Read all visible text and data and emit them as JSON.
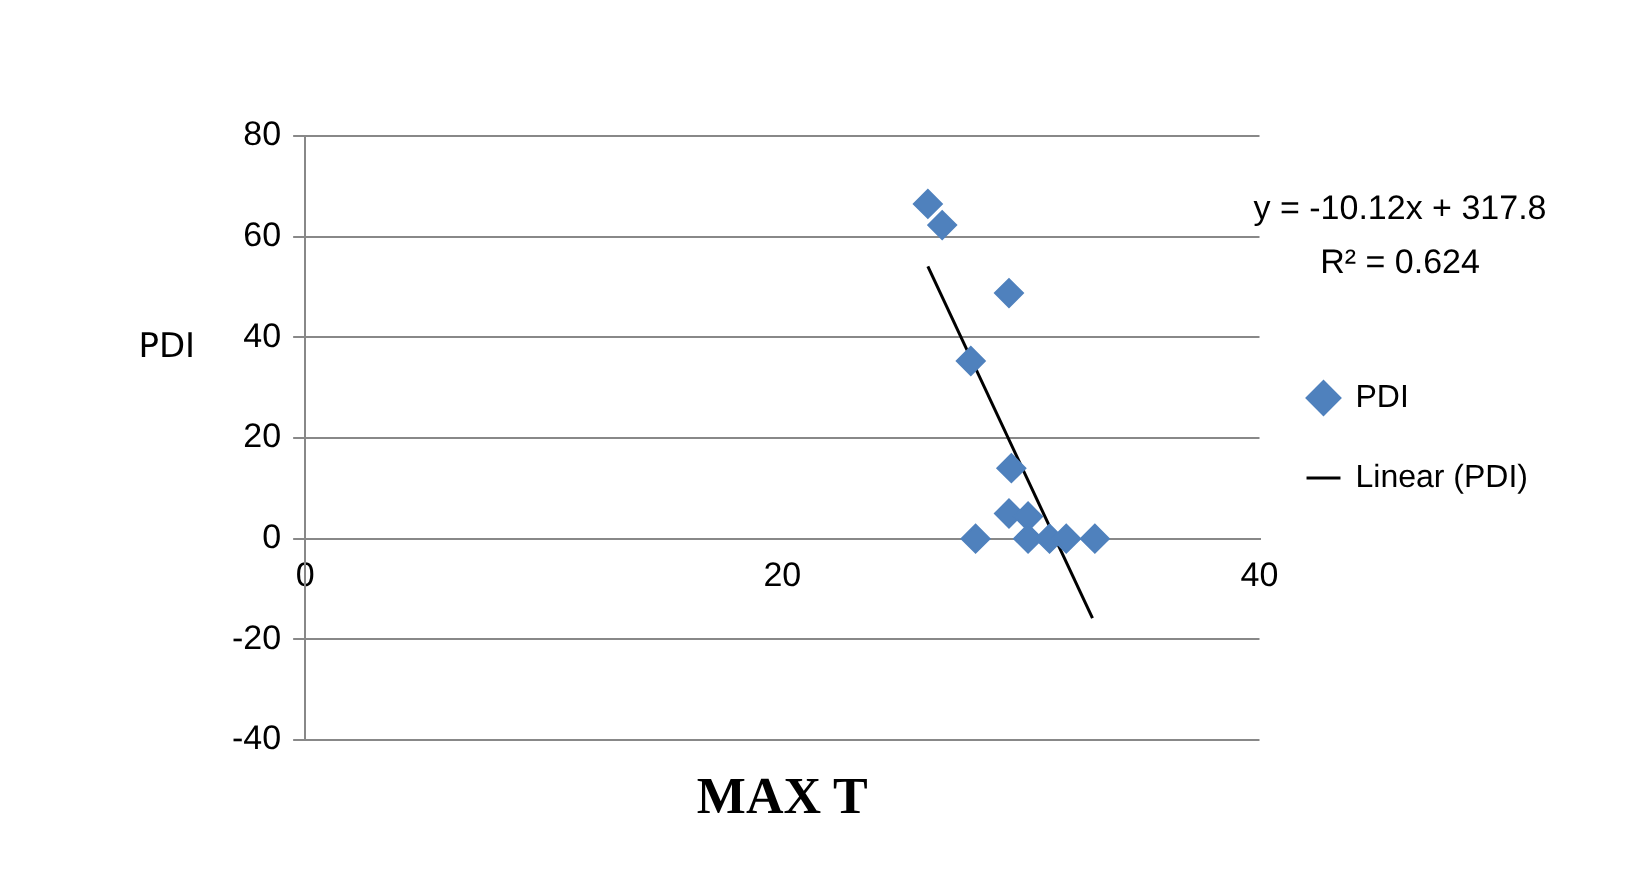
{
  "chart_data": {
    "type": "scatter",
    "xlabel": "MAX T",
    "ylabel": "PDI",
    "xlim": [
      0,
      40
    ],
    "xticks": [
      0,
      20,
      40
    ],
    "ylim": [
      -40,
      80
    ],
    "yticks": [
      -40,
      -20,
      0,
      20,
      40,
      60,
      80
    ],
    "grid": "y",
    "legend": "right",
    "marker": "diamond",
    "annotations": [
      "y = -10.12x + 317.8",
      "R² = 0.624"
    ],
    "series": [
      {
        "name": "PDI",
        "type": "scatter",
        "color": "#4f81bd",
        "x": [
          26.1,
          26.7,
          29.5,
          27.9,
          29.6,
          28.1,
          29.5,
          30.3,
          30.3,
          31.2,
          31.9,
          33.1
        ],
        "values": [
          66.5,
          62.3,
          48.8,
          35.3,
          14,
          0,
          5,
          4.4,
          0,
          0,
          0,
          0
        ]
      },
      {
        "name": "Linear (PDI)",
        "type": "line",
        "marker": "none",
        "color": "#000000",
        "x": [
          26.1,
          33
        ],
        "values": [
          54.1,
          -15.8
        ]
      }
    ]
  }
}
